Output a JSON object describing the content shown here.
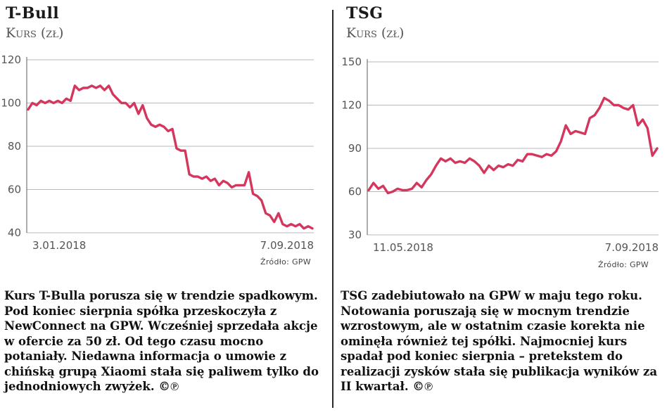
{
  "colors": {
    "series": "#d4365d",
    "grid": "#b8b8b8",
    "text": "#111111"
  },
  "left": {
    "source": "Źródło: GPW",
    "caption": "Kurs T-Bulla porusza się w trendzie spadkowym. Pod koniec sierpnia spółka przeskoczyła z NewConnect na GPW. Wcześniej sprzedała akcje w ofercie za 50 zł. Od tego czasu mocno potaniały. Niedawna informacja o umowie z chińską grupą Xiaomi stała się paliwem tylko do jednodniowych zwyżek. ©℗"
  },
  "right": {
    "source": "Źródło: GPW",
    "caption": "TSG zadebiutowało na GPW w maju tego roku. Notowania poruszają się w mocnym trendzie wzrostowym, ale w ostatnim czasie korekta nie ominęła również tej spółki. Najmocniej kurs spadał pod koniec sierpnia – pretekstem do realizacji zysków stała się publikacja wyników za II kwartał. ©℗"
  },
  "chart_data": [
    {
      "type": "line",
      "title": "T-Bull",
      "subtitle": "Kurs (zł)",
      "ylim": [
        40,
        120
      ],
      "yticks": [
        "120",
        "100",
        "80",
        "60",
        "40"
      ],
      "xticks": [
        "3.01.2018",
        "7.09.2018"
      ],
      "x_range": [
        "3.01.2018",
        "7.09.2018"
      ],
      "grid": true,
      "series": [
        {
          "values": [
            97,
            100,
            99,
            101,
            100,
            101,
            100,
            101,
            100,
            102,
            101,
            108,
            106,
            107,
            107,
            108,
            107,
            108,
            106,
            108,
            104,
            102,
            100,
            100,
            98,
            100,
            95,
            99,
            93,
            90,
            89,
            90,
            89,
            87,
            88,
            79,
            78,
            78,
            67,
            66,
            66,
            65,
            66,
            64,
            65,
            62,
            64,
            63,
            61,
            62,
            62,
            62,
            68,
            58,
            57,
            55,
            49,
            48,
            45,
            49,
            44,
            43,
            44,
            43,
            44,
            42,
            43,
            42
          ]
        }
      ]
    },
    {
      "type": "line",
      "title": "TSG",
      "subtitle": "Kurs (zł)",
      "ylim": [
        30,
        150
      ],
      "yticks": [
        "150",
        "120",
        "90",
        "60",
        "30"
      ],
      "xticks": [
        "11.05.2018",
        "7.09.2018"
      ],
      "x_range": [
        "11.05.2018",
        "7.09.2018"
      ],
      "grid": true,
      "series": [
        {
          "values": [
            61,
            66,
            62,
            64,
            59,
            60,
            62,
            61,
            61,
            62,
            66,
            63,
            68,
            72,
            78,
            83,
            81,
            83,
            80,
            81,
            80,
            83,
            81,
            78,
            73,
            78,
            75,
            78,
            77,
            79,
            78,
            82,
            81,
            86,
            86,
            85,
            84,
            86,
            85,
            88,
            95,
            106,
            100,
            102,
            101,
            100,
            111,
            113,
            118,
            125,
            123,
            120,
            120,
            118,
            117,
            120,
            106,
            110,
            104,
            85,
            90
          ]
        }
      ]
    }
  ]
}
